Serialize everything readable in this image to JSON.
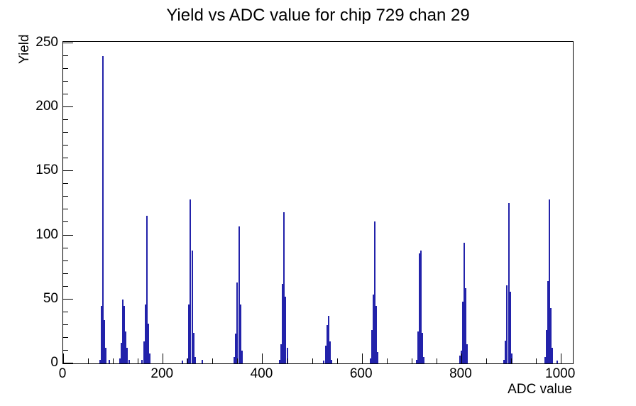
{
  "title": "Yield vs ADC value for chip 729 chan 29",
  "chart_data": {
    "type": "bar",
    "title": "Yield vs ADC value for chip 729 chan 29",
    "xlabel": "ADC value",
    "ylabel": "Yield",
    "xlim": [
      0,
      1024
    ],
    "ylim": [
      0,
      251
    ],
    "x_major_ticks": [
      0,
      200,
      400,
      600,
      800,
      1000
    ],
    "x_minor_step": 50,
    "y_major_ticks": [
      0,
      50,
      100,
      150,
      200,
      250
    ],
    "y_minor_step": 10,
    "grid": false,
    "legend": false,
    "line_color": "#2222AA",
    "bin_width_adc": 3,
    "bins": [
      [
        74,
        3
      ],
      [
        77,
        45
      ],
      [
        80,
        240
      ],
      [
        83,
        34
      ],
      [
        86,
        12
      ],
      [
        92,
        3
      ],
      [
        114,
        4
      ],
      [
        117,
        16
      ],
      [
        120,
        50
      ],
      [
        123,
        45
      ],
      [
        126,
        25
      ],
      [
        129,
        12
      ],
      [
        132,
        3
      ],
      [
        159,
        3
      ],
      [
        162,
        17
      ],
      [
        165,
        46
      ],
      [
        168,
        115
      ],
      [
        171,
        31
      ],
      [
        174,
        8
      ],
      [
        240,
        2
      ],
      [
        250,
        4
      ],
      [
        253,
        46
      ],
      [
        256,
        128
      ],
      [
        259,
        88
      ],
      [
        262,
        24
      ],
      [
        265,
        5
      ],
      [
        280,
        3
      ],
      [
        344,
        5
      ],
      [
        347,
        23
      ],
      [
        350,
        63
      ],
      [
        353,
        107
      ],
      [
        356,
        46
      ],
      [
        359,
        10
      ],
      [
        435,
        3
      ],
      [
        438,
        15
      ],
      [
        441,
        62
      ],
      [
        444,
        118
      ],
      [
        447,
        52
      ],
      [
        450,
        12
      ],
      [
        524,
        2
      ],
      [
        527,
        14
      ],
      [
        530,
        30
      ],
      [
        533,
        37
      ],
      [
        536,
        17
      ],
      [
        539,
        3
      ],
      [
        617,
        4
      ],
      [
        620,
        26
      ],
      [
        623,
        54
      ],
      [
        626,
        111
      ],
      [
        629,
        45
      ],
      [
        632,
        9
      ],
      [
        710,
        3
      ],
      [
        713,
        25
      ],
      [
        716,
        86
      ],
      [
        719,
        88
      ],
      [
        722,
        24
      ],
      [
        725,
        5
      ],
      [
        797,
        6
      ],
      [
        800,
        10
      ],
      [
        803,
        48
      ],
      [
        806,
        94
      ],
      [
        809,
        59
      ],
      [
        812,
        15
      ],
      [
        886,
        3
      ],
      [
        889,
        18
      ],
      [
        892,
        61
      ],
      [
        895,
        125
      ],
      [
        898,
        56
      ],
      [
        901,
        8
      ],
      [
        968,
        5
      ],
      [
        971,
        26
      ],
      [
        974,
        64
      ],
      [
        977,
        128
      ],
      [
        980,
        43
      ],
      [
        983,
        12
      ],
      [
        992,
        2
      ]
    ]
  }
}
